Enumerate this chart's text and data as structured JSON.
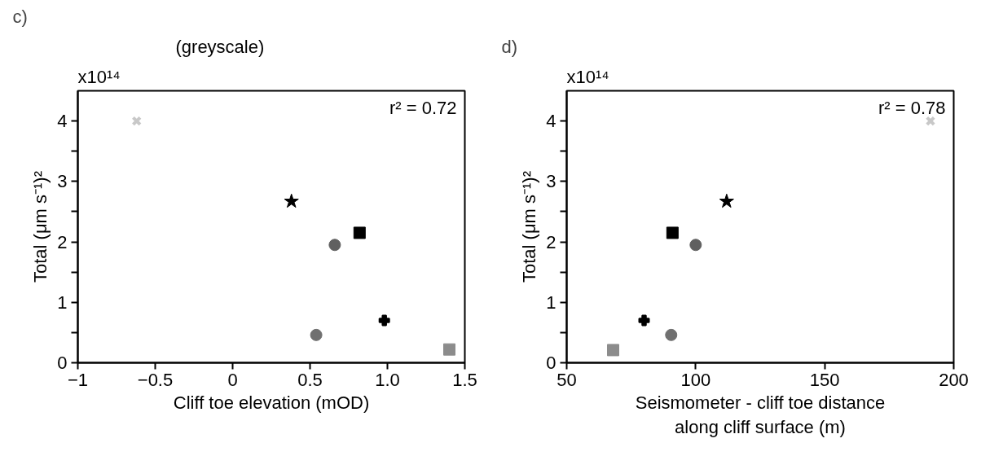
{
  "chart_data": [
    {
      "type": "scatter",
      "title": "c)",
      "ylabel": "Total (μm s⁻¹)²",
      "xlabel": "Cliff toe elevation (mOD)",
      "annotations": [
        "x10¹⁴",
        "r² = 0.72",
        "(greyscale)"
      ],
      "xlim": [
        -1,
        1.5
      ],
      "xticks": [
        {
          "value": -1,
          "label": "−1"
        },
        {
          "value": -0.5,
          "label": "−0.5"
        },
        0,
        0.5,
        {
          "value": 1,
          "label": "1.0"
        },
        1.5
      ],
      "ylim": [
        0,
        4.5
      ],
      "yticks": [
        0,
        {
          "value": 0.5,
          "label": null
        },
        1,
        {
          "value": 1.5,
          "label": null
        },
        2,
        {
          "value": 2.5,
          "label": null
        },
        3,
        {
          "value": 3.5,
          "label": null
        },
        4
      ],
      "grid": false,
      "series": [
        {
          "color": "#c8c8c8",
          "marker": "x",
          "x": [
            -0.62
          ],
          "values": [
            4.0
          ]
        },
        {
          "color": "#000000",
          "marker": "star",
          "x": [
            0.38
          ],
          "values": [
            2.67
          ]
        },
        {
          "color": "#000000",
          "marker": "square",
          "x": [
            0.82
          ],
          "values": [
            2.15
          ]
        },
        {
          "color": "#606060",
          "marker": "circle",
          "x": [
            0.66
          ],
          "values": [
            1.95
          ]
        },
        {
          "color": "#000000",
          "marker": "plus",
          "x": [
            0.98
          ],
          "values": [
            0.7
          ]
        },
        {
          "color": "#707070",
          "marker": "circle",
          "x": [
            0.54
          ],
          "values": [
            0.46
          ]
        },
        {
          "color": "#8c8c8c",
          "marker": "square",
          "x": [
            1.4
          ],
          "values": [
            0.22
          ]
        }
      ]
    },
    {
      "type": "scatter",
      "title": "d)",
      "ylabel": "Total (μm s⁻¹)²",
      "xlabel": "Seismometer - cliff toe distance\nalong cliff surface (m)",
      "annotations": [
        "x10¹⁴",
        "r² = 0.78"
      ],
      "xlim": [
        50,
        200
      ],
      "xticks": [
        50,
        100,
        150,
        200
      ],
      "ylim": [
        0,
        4.5
      ],
      "yticks": [
        0,
        {
          "value": 0.5,
          "label": null
        },
        1,
        {
          "value": 1.5,
          "label": null
        },
        2,
        {
          "value": 2.5,
          "label": null
        },
        3,
        {
          "value": 3.5,
          "label": null
        },
        4
      ],
      "grid": false,
      "series": [
        {
          "color": "#c8c8c8",
          "marker": "x",
          "x": [
            191
          ],
          "values": [
            4.0
          ]
        },
        {
          "color": "#000000",
          "marker": "star",
          "x": [
            112
          ],
          "values": [
            2.67
          ]
        },
        {
          "color": "#000000",
          "marker": "square",
          "x": [
            91
          ],
          "values": [
            2.15
          ]
        },
        {
          "color": "#606060",
          "marker": "circle",
          "x": [
            100
          ],
          "values": [
            1.95
          ]
        },
        {
          "color": "#000000",
          "marker": "plus",
          "x": [
            80
          ],
          "values": [
            0.7
          ]
        },
        {
          "color": "#707070",
          "marker": "circle",
          "x": [
            90.5
          ],
          "values": [
            0.46
          ]
        },
        {
          "color": "#8c8c8c",
          "marker": "square",
          "x": [
            68
          ],
          "values": [
            0.21
          ]
        }
      ]
    }
  ]
}
